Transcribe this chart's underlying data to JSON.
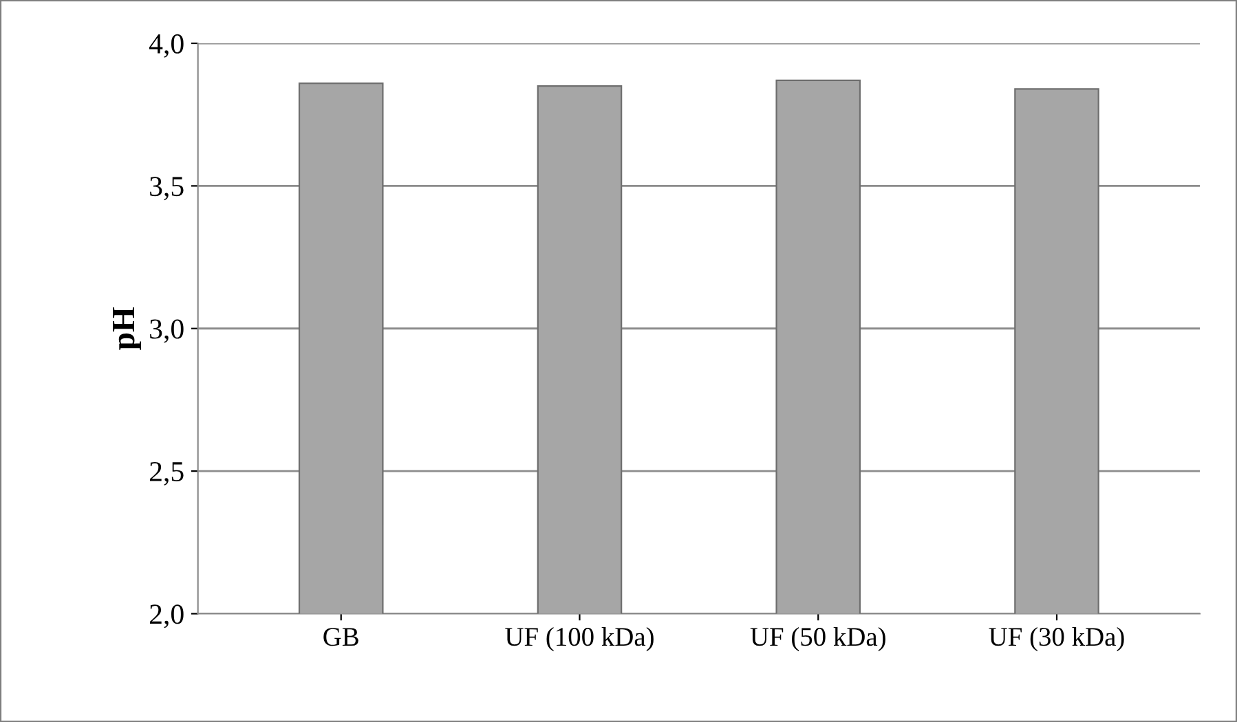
{
  "chart_data": {
    "type": "bar",
    "ylabel": "pH",
    "categories": [
      "GB",
      "UF (100 kDa)",
      "UF (50 kDa)",
      "UF (30 kDa)"
    ],
    "values": [
      3.86,
      3.85,
      3.87,
      3.84
    ],
    "color": "#a6a6a6",
    "ylim": [
      2.0,
      4.0
    ],
    "yticks": [
      {
        "value": 2.0,
        "label": "2,0"
      },
      {
        "value": 2.5,
        "label": "2,5"
      },
      {
        "value": 3.0,
        "label": "3,0"
      },
      {
        "value": 3.5,
        "label": "3,5"
      },
      {
        "value": 4.0,
        "label": "4,0"
      }
    ],
    "grid": "y"
  }
}
